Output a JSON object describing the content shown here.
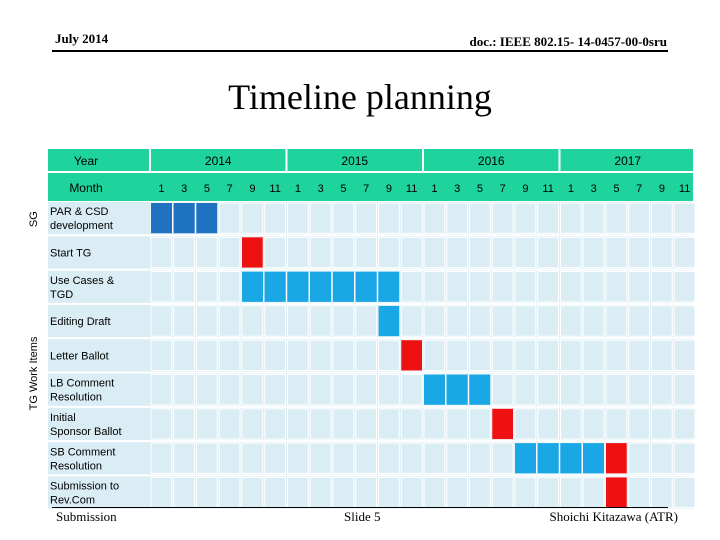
{
  "header": {
    "date": "July 2014",
    "doc_id": "doc.: IEEE 802.15- 14-0457-00-0sru"
  },
  "title": "Timeline planning",
  "gantt": {
    "year_label": "Year",
    "month_label": "Month",
    "years": [
      "2014",
      "2015",
      "2016",
      "2017"
    ],
    "month_ticks": [
      "1",
      "3",
      "5",
      "7",
      "9",
      "11"
    ],
    "group_labels": {
      "sg": "SG",
      "tg": "TG Work Items"
    },
    "colors": {
      "header": "#1ed39c",
      "grid": "#daedf4",
      "dark_blue": "#1f72c0",
      "light_blue": "#19a7e6",
      "red": "#ee1111"
    },
    "rows": [
      {
        "label": [
          "PAR & CSD",
          "development"
        ],
        "group": "sg",
        "segments": [
          {
            "start": 0,
            "span": 3,
            "color": "dark_blue"
          }
        ]
      },
      {
        "label": [
          "Start TG"
        ],
        "group": "tg",
        "segments": [
          {
            "start": 4,
            "span": 1,
            "color": "red"
          }
        ]
      },
      {
        "label": [
          "Use Cases &",
          "TGD"
        ],
        "group": "tg",
        "segments": [
          {
            "start": 4,
            "span": 7,
            "color": "light_blue"
          }
        ]
      },
      {
        "label": [
          "Editing Draft"
        ],
        "group": "tg",
        "segments": [
          {
            "start": 10,
            "span": 1,
            "color": "light_blue"
          }
        ]
      },
      {
        "label": [
          "Letter Ballot"
        ],
        "group": "tg",
        "segments": [
          {
            "start": 11,
            "span": 1,
            "color": "red"
          }
        ]
      },
      {
        "label": [
          "LB Comment",
          "Resolution"
        ],
        "group": "tg",
        "segments": [
          {
            "start": 12,
            "span": 3,
            "color": "light_blue"
          }
        ]
      },
      {
        "label": [
          "Initial",
          "Sponsor Ballot"
        ],
        "group": "tg",
        "segments": [
          {
            "start": 15,
            "span": 1,
            "color": "red"
          }
        ]
      },
      {
        "label": [
          "SB Comment",
          "Resolution"
        ],
        "group": "tg",
        "segments": [
          {
            "start": 16,
            "span": 4,
            "color": "light_blue"
          },
          {
            "start": 20,
            "span": 1,
            "color": "red"
          }
        ]
      },
      {
        "label": [
          "Submission to",
          "Rev.Com"
        ],
        "group": "tg",
        "segments": [
          {
            "start": 20,
            "span": 1,
            "color": "red"
          }
        ]
      }
    ]
  },
  "footer": {
    "left": "Submission",
    "center": "Slide 5",
    "right": "Shoichi Kitazawa (ATR)"
  }
}
